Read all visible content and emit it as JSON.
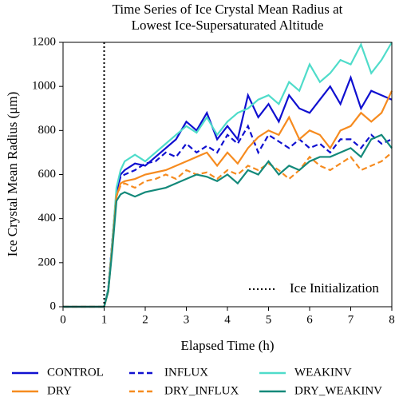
{
  "chart_data": {
    "type": "line",
    "title": "Time Series of Ice Crystal Mean Radius at",
    "subtitle": "Lowest Ice-Supersaturated Altitude",
    "x_label": "Elapsed Time (h)",
    "y_label": "Ice Crystal Mean Radius (μm)",
    "x": [
      0,
      0.5,
      1.0,
      1.1,
      1.2,
      1.3,
      1.4,
      1.5,
      1.75,
      2,
      2.25,
      2.5,
      2.75,
      3,
      3.25,
      3.5,
      3.75,
      4,
      4.25,
      4.5,
      4.75,
      5,
      5.25,
      5.5,
      5.75,
      6,
      6.25,
      6.5,
      6.75,
      7,
      7.25,
      7.5,
      7.75,
      8
    ],
    "xlim": [
      0,
      8
    ],
    "xticks": [
      0,
      1,
      2,
      3,
      4,
      5,
      6,
      7,
      8
    ],
    "ylim": [
      0,
      1200
    ],
    "yticks": [
      0,
      200,
      400,
      600,
      800,
      1000,
      1200
    ],
    "vline": {
      "x": 1,
      "label": "Ice Initialization"
    },
    "series": [
      {
        "name": "CONTROL",
        "color": "#1010d0",
        "style": "solid",
        "values": [
          0,
          0,
          0,
          80,
          300,
          520,
          600,
          620,
          650,
          640,
          680,
          720,
          760,
          840,
          800,
          880,
          760,
          820,
          760,
          960,
          860,
          920,
          840,
          960,
          900,
          880,
          940,
          1000,
          920,
          1040,
          900,
          980,
          960,
          940
        ]
      },
      {
        "name": "INFLUX",
        "color": "#1010d0",
        "style": "dashed",
        "values": [
          0,
          0,
          0,
          80,
          300,
          520,
          590,
          600,
          620,
          650,
          660,
          700,
          680,
          740,
          700,
          730,
          700,
          780,
          740,
          820,
          700,
          780,
          750,
          720,
          760,
          720,
          740,
          700,
          760,
          760,
          720,
          780,
          740,
          760
        ]
      },
      {
        "name": "WEAKINV",
        "color": "#4fdcca",
        "style": "solid",
        "values": [
          0,
          0,
          0,
          80,
          300,
          540,
          620,
          660,
          690,
          660,
          700,
          740,
          780,
          820,
          790,
          860,
          780,
          840,
          880,
          900,
          940,
          960,
          920,
          1020,
          980,
          1100,
          1020,
          1060,
          1120,
          1100,
          1190,
          1060,
          1120,
          1200
        ]
      },
      {
        "name": "DRY",
        "color": "#f68b1f",
        "style": "solid",
        "values": [
          0,
          0,
          0,
          70,
          280,
          500,
          560,
          570,
          580,
          600,
          610,
          620,
          640,
          660,
          680,
          700,
          640,
          700,
          650,
          720,
          770,
          800,
          780,
          860,
          760,
          800,
          780,
          720,
          800,
          820,
          880,
          840,
          880,
          980
        ]
      },
      {
        "name": "DRY_INFLUX",
        "color": "#f68b1f",
        "style": "dashed",
        "values": [
          0,
          0,
          0,
          70,
          280,
          500,
          550,
          560,
          540,
          570,
          580,
          600,
          580,
          620,
          600,
          610,
          580,
          620,
          600,
          640,
          620,
          650,
          620,
          580,
          620,
          680,
          640,
          620,
          650,
          680,
          620,
          640,
          660,
          700
        ]
      },
      {
        "name": "DRY_WEAKINV",
        "color": "#13897a",
        "style": "solid",
        "values": [
          0,
          0,
          0,
          70,
          260,
          480,
          510,
          520,
          500,
          520,
          530,
          540,
          560,
          580,
          600,
          590,
          570,
          600,
          560,
          620,
          600,
          660,
          600,
          640,
          620,
          660,
          680,
          680,
          700,
          720,
          680,
          760,
          780,
          720
        ]
      }
    ]
  }
}
